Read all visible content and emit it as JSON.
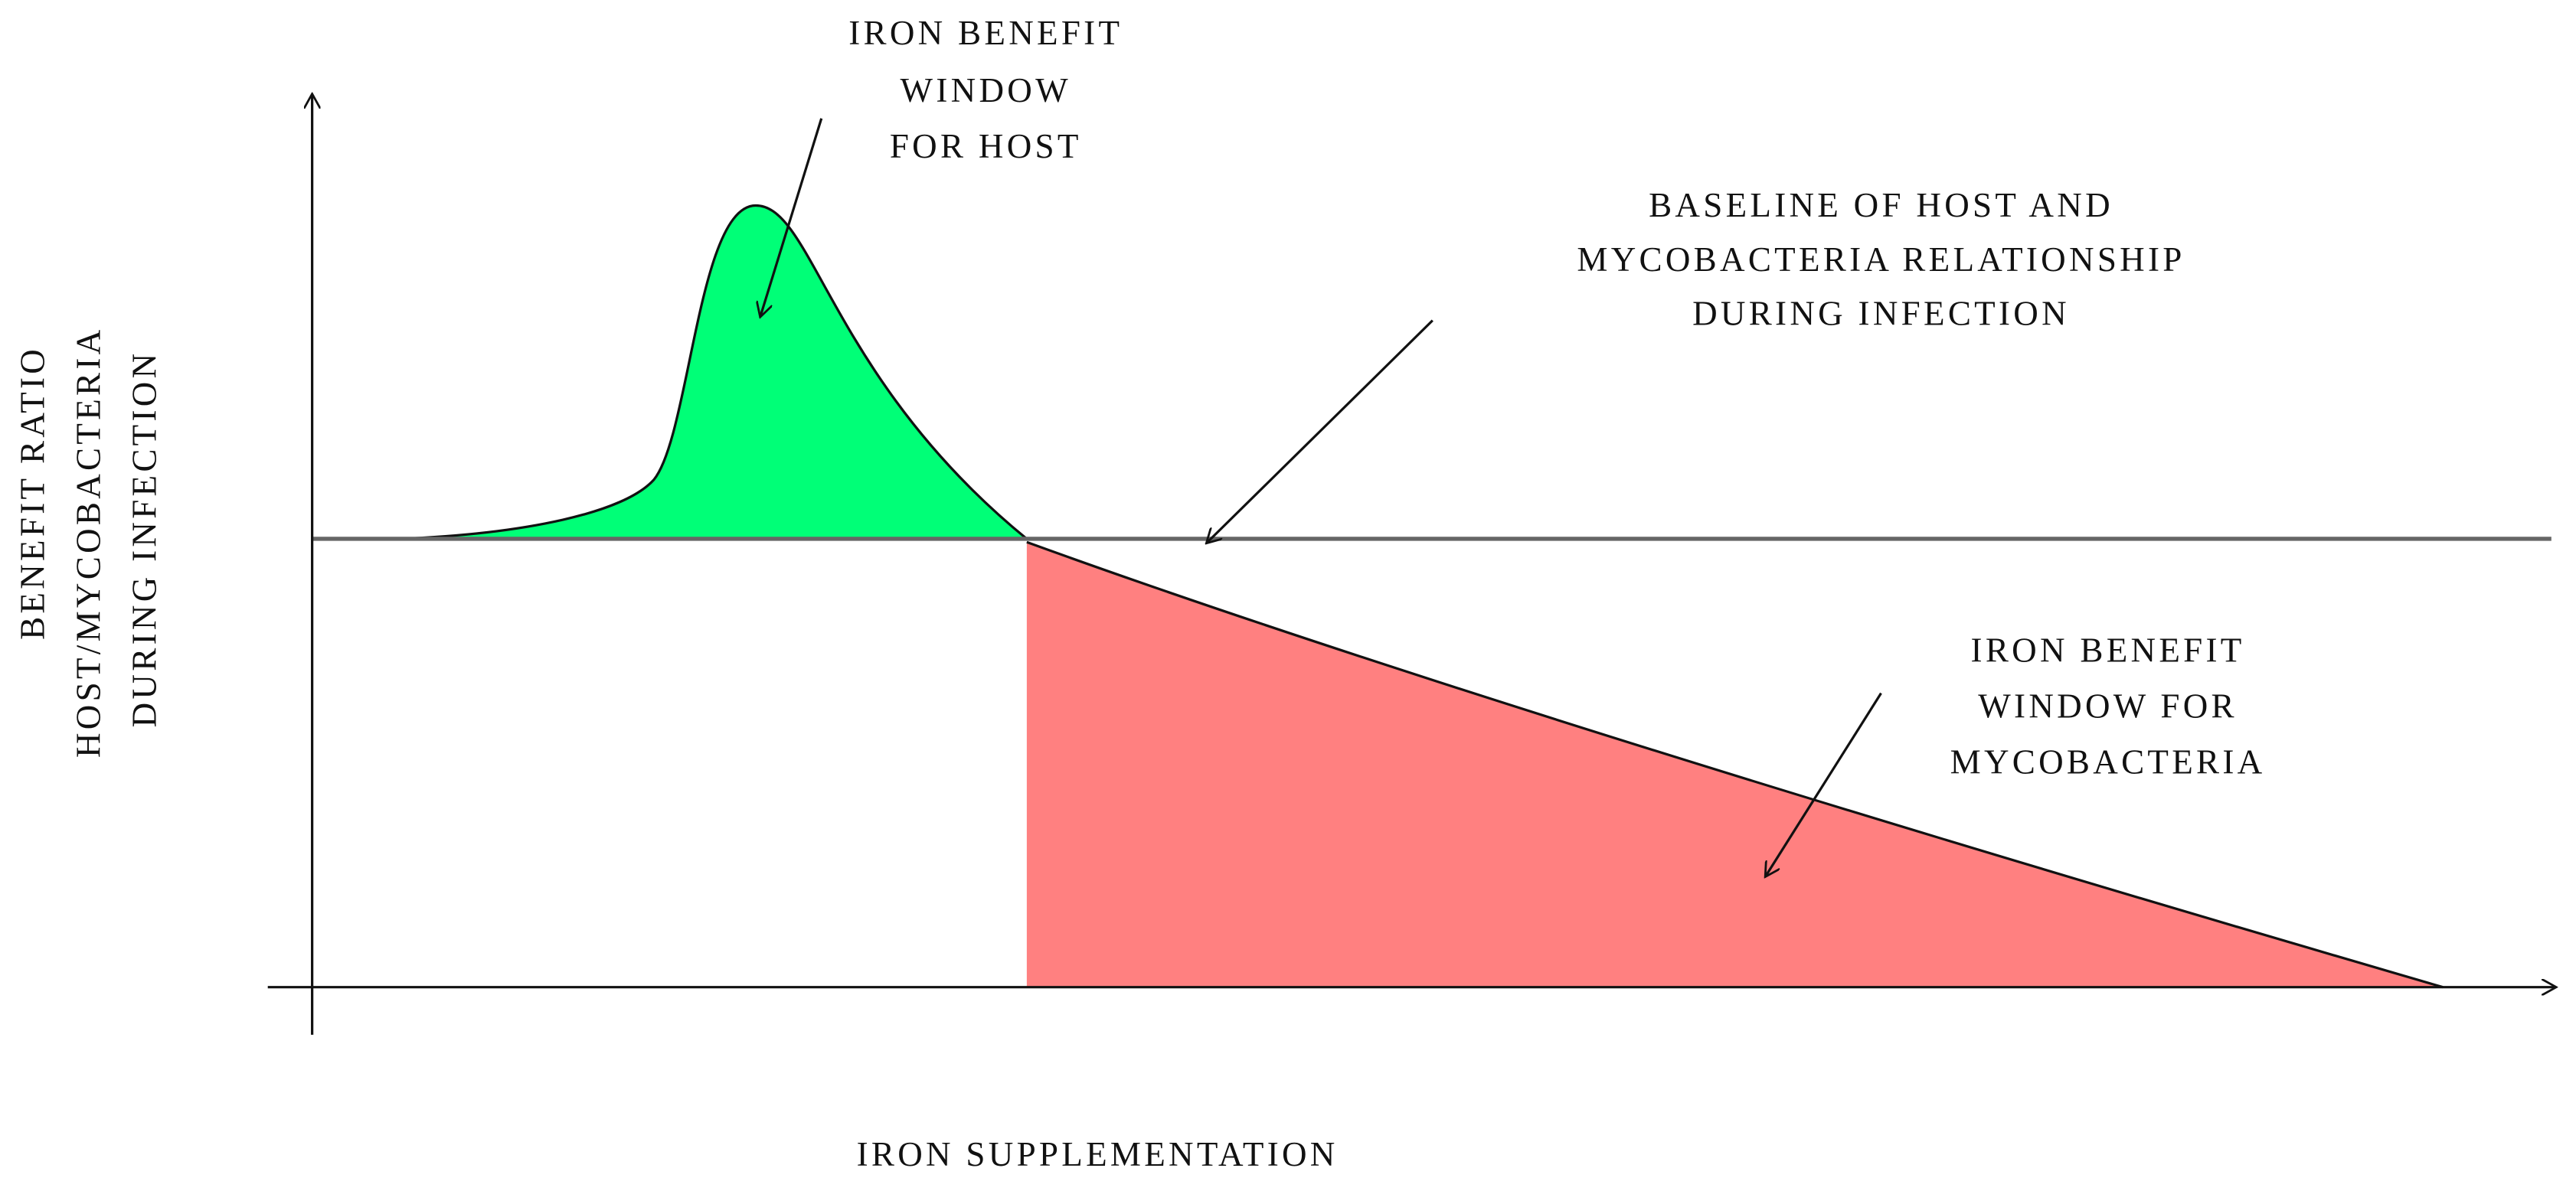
{
  "annotations": [
    {
      "lines": [
        "IRON BENEFIT",
        "WINDOW",
        "FOR HOST"
      ]
    },
    {
      "lines": [
        "BASELINE OF HOST AND",
        "MYCOBACTERIA RELATIONSHIP",
        "DURING INFECTION"
      ]
    },
    {
      "lines": [
        "IRON BENEFIT",
        "WINDOW FOR",
        "MYCOBACTERIA"
      ]
    }
  ],
  "y_axis": {
    "lines": [
      "BENEFIT RATIO",
      "HOST/MYCOBACTERIA",
      "DURING INFECTION"
    ]
  },
  "x_axis": {
    "label": "IRON SUPPLEMENTATION"
  }
}
